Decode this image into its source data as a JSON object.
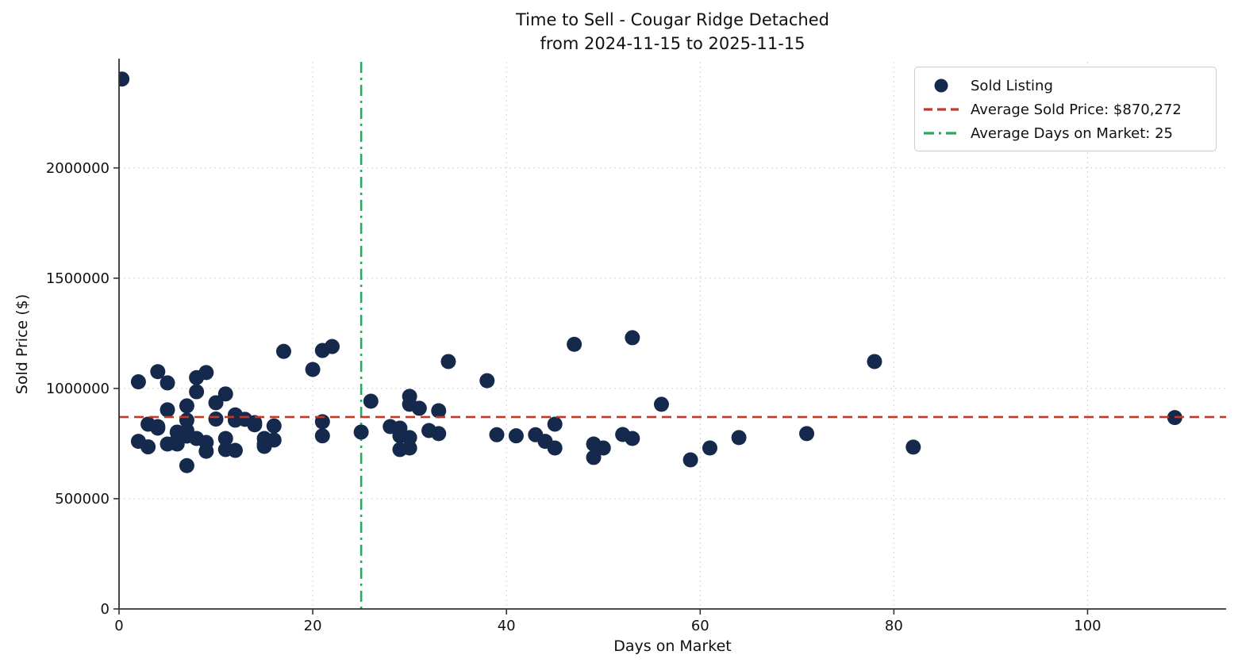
{
  "title": {
    "line1": "Time to Sell - Cougar Ridge Detached",
    "line2": "from 2024-11-15 to 2025-11-15"
  },
  "legend": {
    "sold_listing": "Sold Listing",
    "avg_price": "Average Sold Price: $870,272",
    "avg_days": "Average Days on Market: 25"
  },
  "chart_data": {
    "type": "scatter",
    "title": "Time to Sell - Cougar Ridge Detached from 2024-11-15 to 2025-11-15",
    "xlabel": "Days on Market",
    "ylabel": "Sold Price ($)",
    "xlim": [
      0,
      114.3
    ],
    "ylim": [
      0,
      2481000
    ],
    "xticks": [
      0,
      20,
      40,
      60,
      80,
      100
    ],
    "yticks": [
      0,
      500000,
      1000000,
      1500000,
      2000000
    ],
    "grid": true,
    "legend_position": "upper right",
    "avg_sold_price": 870272,
    "avg_days_on_market": 25,
    "colors": {
      "point": "#14294b",
      "avg_price_line": "#c0392b",
      "avg_days_line": "#2aa963",
      "grid": "#d4d4d4",
      "axis": "#333333",
      "text": "#111111"
    },
    "series": [
      {
        "name": "Sold Listing",
        "points": [
          [
            0.3,
            2403000
          ],
          [
            2,
            1030000
          ],
          [
            2,
            760000
          ],
          [
            3,
            838000
          ],
          [
            3,
            735000
          ],
          [
            4,
            1076000
          ],
          [
            4,
            827000
          ],
          [
            4,
            820000
          ],
          [
            5,
            1025000
          ],
          [
            5,
            903000
          ],
          [
            5,
            748000
          ],
          [
            6,
            802000
          ],
          [
            6,
            766000
          ],
          [
            6,
            748000
          ],
          [
            7,
            921000
          ],
          [
            7,
            856000
          ],
          [
            7,
            809000
          ],
          [
            7,
            784000
          ],
          [
            7,
            650000
          ],
          [
            8,
            1049000
          ],
          [
            8,
            985000
          ],
          [
            8,
            773000
          ],
          [
            9,
            1072000
          ],
          [
            9,
            755000
          ],
          [
            9,
            715000
          ],
          [
            10,
            935000
          ],
          [
            10,
            861000
          ],
          [
            11,
            975000
          ],
          [
            11,
            773000
          ],
          [
            11,
            723000
          ],
          [
            12,
            880000
          ],
          [
            12,
            856000
          ],
          [
            12,
            719000
          ],
          [
            13,
            860000
          ],
          [
            14,
            845000
          ],
          [
            14,
            835000
          ],
          [
            15,
            773000
          ],
          [
            15,
            748000
          ],
          [
            15,
            737000
          ],
          [
            16,
            830000
          ],
          [
            16,
            766000
          ],
          [
            17,
            1168000
          ],
          [
            20,
            1086000
          ],
          [
            21,
            1172000
          ],
          [
            21,
            849000
          ],
          [
            21,
            785000
          ],
          [
            22,
            1190000
          ],
          [
            25,
            802000
          ],
          [
            26,
            942000
          ],
          [
            28,
            827000
          ],
          [
            29,
            820000
          ],
          [
            29,
            785000
          ],
          [
            29,
            723000
          ],
          [
            30,
            964000
          ],
          [
            30,
            928000
          ],
          [
            30,
            777000
          ],
          [
            30,
            730000
          ],
          [
            31,
            910000
          ],
          [
            32,
            809000
          ],
          [
            33,
            899000
          ],
          [
            33,
            795000
          ],
          [
            34,
            1122000
          ],
          [
            38,
            1035000
          ],
          [
            39,
            790000
          ],
          [
            41,
            785000
          ],
          [
            43,
            790000
          ],
          [
            44,
            760000
          ],
          [
            45,
            838000
          ],
          [
            45,
            730000
          ],
          [
            47,
            1200000
          ],
          [
            49,
            748000
          ],
          [
            49,
            687000
          ],
          [
            50,
            730000
          ],
          [
            52,
            791000
          ],
          [
            53,
            1230000
          ],
          [
            53,
            773000
          ],
          [
            56,
            928000
          ],
          [
            59,
            676000
          ],
          [
            61,
            730000
          ],
          [
            64,
            777000
          ],
          [
            71,
            795000
          ],
          [
            78,
            1122000
          ],
          [
            82,
            734000
          ],
          [
            109,
            868000
          ]
        ]
      }
    ]
  }
}
